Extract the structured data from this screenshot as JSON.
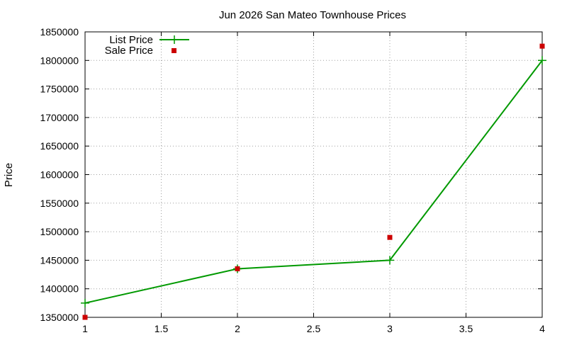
{
  "chart_data": {
    "type": "line",
    "title": "Jun 2026 San Mateo Townhouse Prices",
    "xlabel": "",
    "ylabel": "Price",
    "xlim": [
      1,
      4
    ],
    "ylim": [
      1350000,
      1850000
    ],
    "x_ticks": [
      1,
      1.5,
      2,
      2.5,
      3,
      3.5,
      4
    ],
    "y_ticks": [
      1350000,
      1400000,
      1450000,
      1500000,
      1550000,
      1600000,
      1650000,
      1700000,
      1750000,
      1800000,
      1850000
    ],
    "grid": true,
    "legend_position": "top-left",
    "series": [
      {
        "name": "List Price",
        "type": "line",
        "color": "#009900",
        "marker": "plus",
        "x": [
          1,
          2,
          3,
          4
        ],
        "y": [
          1375000,
          1435000,
          1450000,
          1800000
        ]
      },
      {
        "name": "Sale Price",
        "type": "scatter",
        "color": "#cc0000",
        "marker": "square",
        "x": [
          1,
          2,
          3,
          4
        ],
        "y": [
          1350000,
          1435000,
          1490000,
          1825000
        ]
      }
    ]
  }
}
